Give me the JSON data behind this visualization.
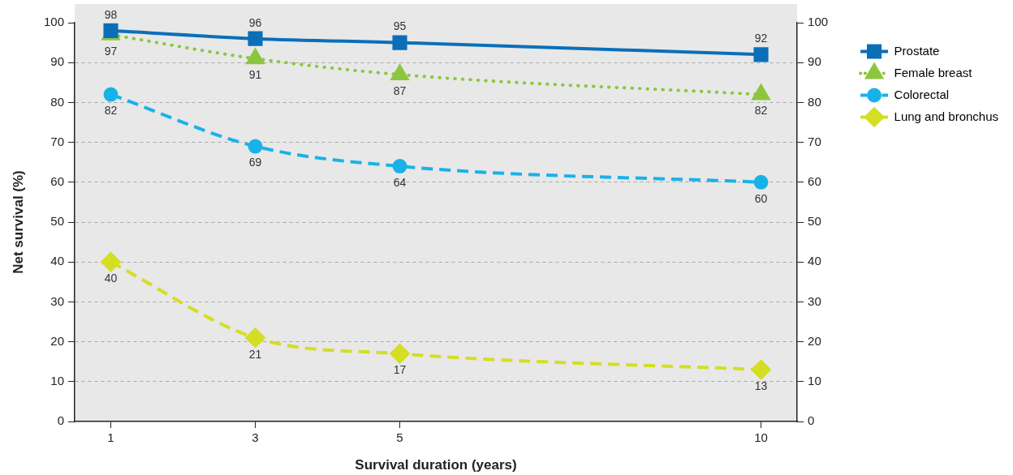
{
  "chart_data": {
    "type": "line",
    "xlabel": "Survival duration (years)",
    "ylabel": "Net survival (%)",
    "x": [
      1,
      3,
      5,
      10
    ],
    "xlim": [
      0.5,
      10.5
    ],
    "xticks": [
      1,
      3,
      5,
      10
    ],
    "ylim": [
      0,
      100
    ],
    "yticks": [
      0,
      10,
      20,
      30,
      40,
      50,
      60,
      70,
      80,
      90,
      100
    ],
    "y2lim": [
      0,
      100
    ],
    "y2ticks": [
      0,
      10,
      20,
      30,
      40,
      50,
      60,
      70,
      80,
      90,
      100
    ],
    "grid": "y",
    "legend": "right",
    "data_labels": true,
    "series": [
      {
        "name": "Prostate",
        "color": "#0b6fb8",
        "marker": "square",
        "line_style": "solid",
        "values": [
          98,
          96,
          95,
          92
        ]
      },
      {
        "name": "Female breast",
        "color": "#8cc63f",
        "marker": "triangle",
        "line_style": "dotted",
        "values": [
          97,
          91,
          87,
          82
        ]
      },
      {
        "name": "Colorectal",
        "color": "#19b2e8",
        "marker": "circle",
        "line_style": "dashed",
        "values": [
          82,
          69,
          64,
          60
        ]
      },
      {
        "name": "Lung and bronchus",
        "color": "#d4de23",
        "marker": "diamond",
        "line_style": "dashed",
        "values": [
          40,
          21,
          17,
          13
        ]
      }
    ]
  }
}
